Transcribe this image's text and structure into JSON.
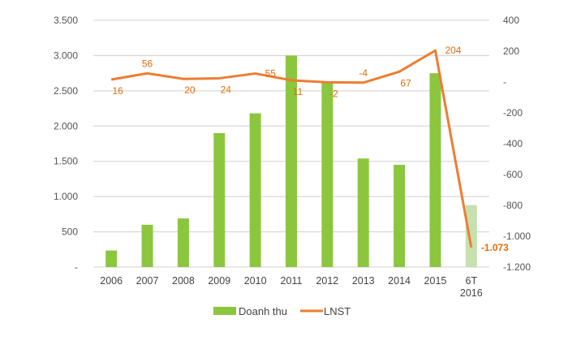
{
  "chart_data": {
    "type": "bar+line",
    "title": "",
    "categories": [
      "2006",
      "2007",
      "2008",
      "2009",
      "2010",
      "2011",
      "2012",
      "2013",
      "2014",
      "2015",
      "6T 2016"
    ],
    "series": [
      {
        "name": "Doanh thu",
        "type": "bar",
        "axis": "left",
        "values": [
          235,
          600,
          690,
          1900,
          2180,
          3000,
          2620,
          1540,
          1450,
          2750,
          880
        ],
        "color": "#8cc63f",
        "highlight_last_color": "#c6e0b0"
      },
      {
        "name": "LNST",
        "type": "line",
        "axis": "right",
        "values": [
          16,
          56,
          20,
          24,
          55,
          11,
          -2,
          -4,
          67,
          204,
          -1073
        ],
        "labels": [
          "16",
          "56",
          "20",
          "24",
          "55",
          "11",
          "-2",
          "-4",
          "67",
          "204",
          "-1.073"
        ],
        "label_pos": [
          "below",
          "above",
          "below",
          "below",
          "right",
          "below",
          "below",
          "above",
          "below",
          "right",
          "right"
        ],
        "color": "#ed7d31",
        "label_color": "#e46c0a"
      }
    ],
    "left_axis": {
      "range": [
        0,
        3500
      ],
      "ticks": [
        0,
        500,
        1000,
        1500,
        2000,
        2500,
        3000,
        3500
      ],
      "tick_labels": [
        "-",
        "500",
        "1.000",
        "1.500",
        "2.000",
        "2.500",
        "3.000",
        "3.500"
      ]
    },
    "right_axis": {
      "range": [
        -1200,
        400
      ],
      "ticks": [
        400,
        200,
        0,
        -200,
        -400,
        -600,
        -800,
        -1000,
        -1200
      ],
      "tick_labels": [
        "400",
        "200",
        "-",
        "-200",
        "-400",
        "-600",
        "-800",
        "-1.000",
        "-1.200"
      ]
    },
    "grid": true,
    "legend": {
      "placement": "bottom",
      "entries": [
        "Doanh thu",
        "LNST"
      ]
    }
  }
}
